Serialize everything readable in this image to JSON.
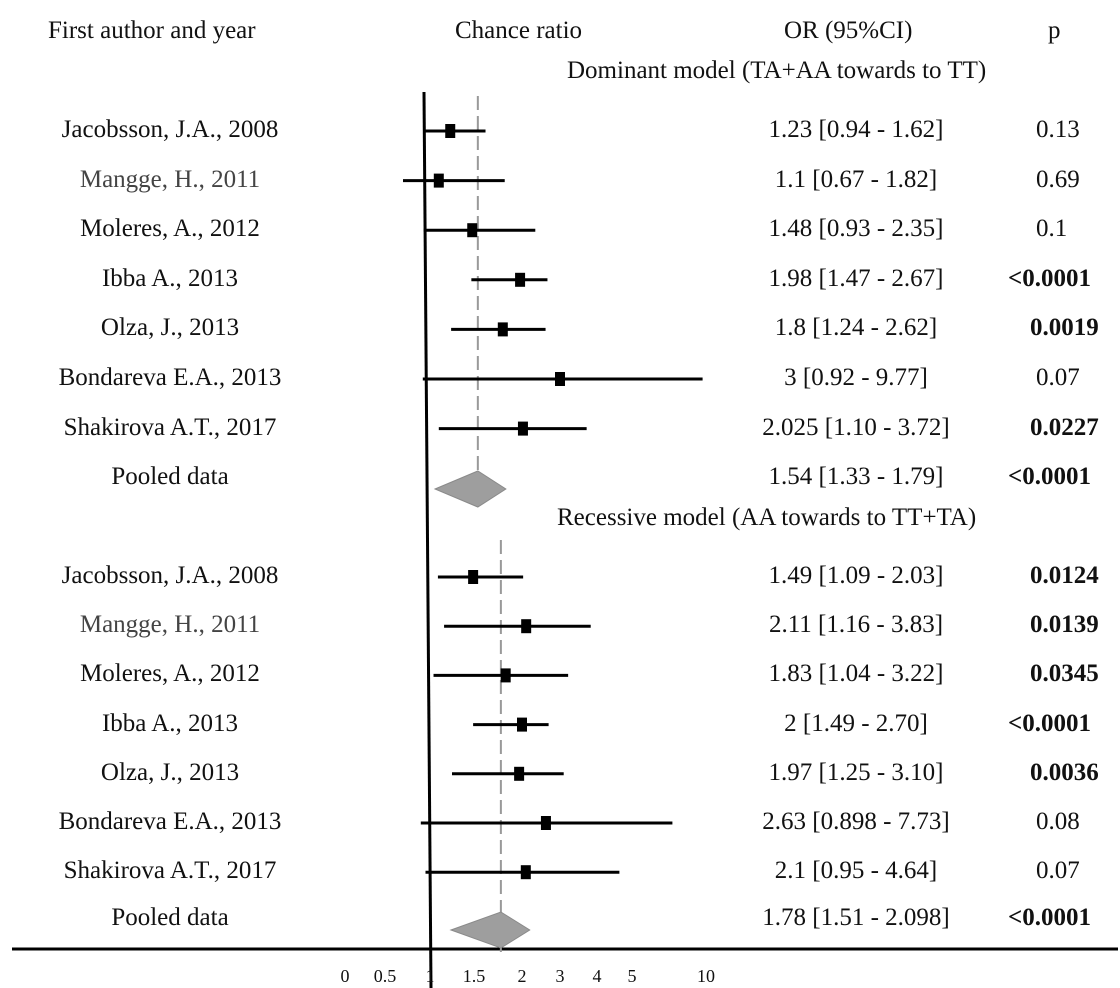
{
  "headers": {
    "study": "First author and year",
    "plot": "Chance ratio",
    "or": "OR (95%CI)",
    "p": "p"
  },
  "x_ticks": [
    "0",
    "0.5",
    "1",
    "1.5",
    "2",
    "3",
    "4",
    "5",
    "10"
  ],
  "chart_data": {
    "type": "forest",
    "xlabel": "Chance ratio",
    "reference_line": 1,
    "groups": [
      {
        "title": "Dominant model (TA+AA towards to TT)",
        "studies": [
          {
            "study": "Jacobsson, J.A., 2008",
            "or": 1.23,
            "lo": 0.94,
            "hi": 1.62,
            "or_text": "1.23 [0.94 - 1.62]",
            "p": "0.13",
            "p_bold": false
          },
          {
            "study": "Mangge, H., 2011",
            "or": 1.1,
            "lo": 0.67,
            "hi": 1.82,
            "or_text": "1.1 [0.67 - 1.82]",
            "p": "0.69",
            "p_bold": false
          },
          {
            "study": "Moleres, A., 2012",
            "or": 1.48,
            "lo": 0.93,
            "hi": 2.35,
            "or_text": "1.48 [0.93 - 2.35]",
            "p": "0.1",
            "p_bold": false
          },
          {
            "study": "Ibba A., 2013",
            "or": 1.98,
            "lo": 1.47,
            "hi": 2.67,
            "or_text": "1.98 [1.47 - 2.67]",
            "p": "<0.0001",
            "p_bold": true
          },
          {
            "study": "Olza, J., 2013",
            "or": 1.8,
            "lo": 1.24,
            "hi": 2.62,
            "or_text": "1.8 [1.24 - 2.62]",
            "p": "0.0019",
            "p_bold": true
          },
          {
            "study": "Bondareva E.A., 2013",
            "or": 3,
            "lo": 0.92,
            "hi": 9.77,
            "or_text": "3 [0.92 - 9.77]",
            "p": "0.07",
            "p_bold": false
          },
          {
            "study": "Shakirova A.T., 2017",
            "or": 2.025,
            "lo": 1.1,
            "hi": 3.72,
            "or_text": "2.025 [1.10 - 3.72]",
            "p": "0.0227",
            "p_bold": true
          }
        ],
        "pooled": {
          "label": "Pooled data",
          "or": 1.54,
          "lo": 1.33,
          "hi": 1.79,
          "or_text": "1.54 [1.33 - 1.79]",
          "p": "<0.0001",
          "p_bold": true
        }
      },
      {
        "title": "Recessive model (AA towards to TT+TA)",
        "studies": [
          {
            "study": "Jacobsson, J.A., 2008",
            "or": 1.49,
            "lo": 1.09,
            "hi": 2.03,
            "or_text": "1.49 [1.09 - 2.03]",
            "p": "0.0124",
            "p_bold": true
          },
          {
            "study": "Mangge, H., 2011",
            "or": 2.11,
            "lo": 1.16,
            "hi": 3.83,
            "or_text": "2.11 [1.16 - 3.83]",
            "p": "0.0139",
            "p_bold": true
          },
          {
            "study": "Moleres, A., 2012",
            "or": 1.83,
            "lo": 1.04,
            "hi": 3.22,
            "or_text": "1.83 [1.04 - 3.22]",
            "p": "0.0345",
            "p_bold": true
          },
          {
            "study": "Ibba A., 2013",
            "or": 2,
            "lo": 1.49,
            "hi": 2.7,
            "or_text": "2 [1.49 - 2.70]",
            "p": "<0.0001",
            "p_bold": true
          },
          {
            "study": "Olza, J., 2013",
            "or": 1.97,
            "lo": 1.25,
            "hi": 3.1,
            "or_text": "1.97 [1.25 - 3.10]",
            "p": "0.0036",
            "p_bold": true
          },
          {
            "study": "Bondareva E.A., 2013",
            "or": 2.63,
            "lo": 0.898,
            "hi": 7.73,
            "or_text": "2.63 [0.898 - 7.73]",
            "p": "0.08",
            "p_bold": false
          },
          {
            "study": "Shakirova A.T., 2017",
            "or": 2.1,
            "lo": 0.95,
            "hi": 4.64,
            "or_text": "2.1 [0.95 - 4.64]",
            "p": "0.07",
            "p_bold": false
          }
        ],
        "pooled": {
          "label": "Pooled data",
          "or": 1.78,
          "lo": 1.51,
          "hi": 2.098,
          "or_text": "1.78 [1.51 - 2.098]",
          "p": "<0.0001",
          "p_bold": true
        }
      }
    ]
  }
}
